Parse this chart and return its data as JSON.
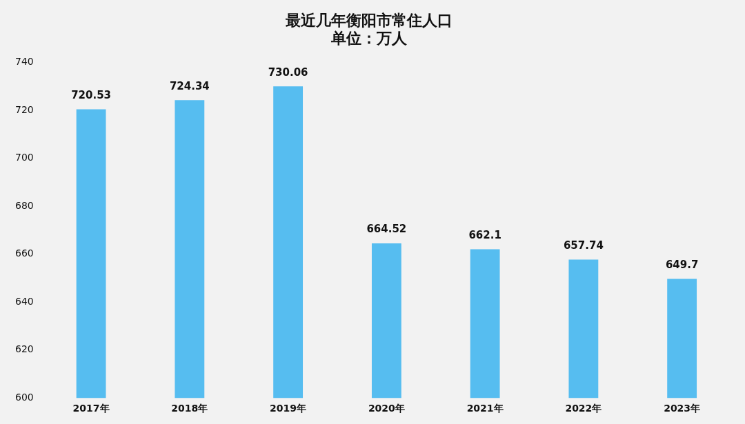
{
  "chart_data": {
    "type": "bar",
    "title": "最近几年衡阳市常住人口",
    "subtitle": "单位：万人",
    "categories": [
      "2017年",
      "2018年",
      "2019年",
      "2020年",
      "2021年",
      "2022年",
      "2023年"
    ],
    "values": [
      720.53,
      724.34,
      730.06,
      664.52,
      662.1,
      657.74,
      649.7
    ],
    "color": "#56bdf0",
    "ylim": [
      600,
      740
    ],
    "yticks": [
      600,
      620,
      640,
      660,
      680,
      700,
      720,
      740
    ],
    "grid": false,
    "data_labels": true
  }
}
